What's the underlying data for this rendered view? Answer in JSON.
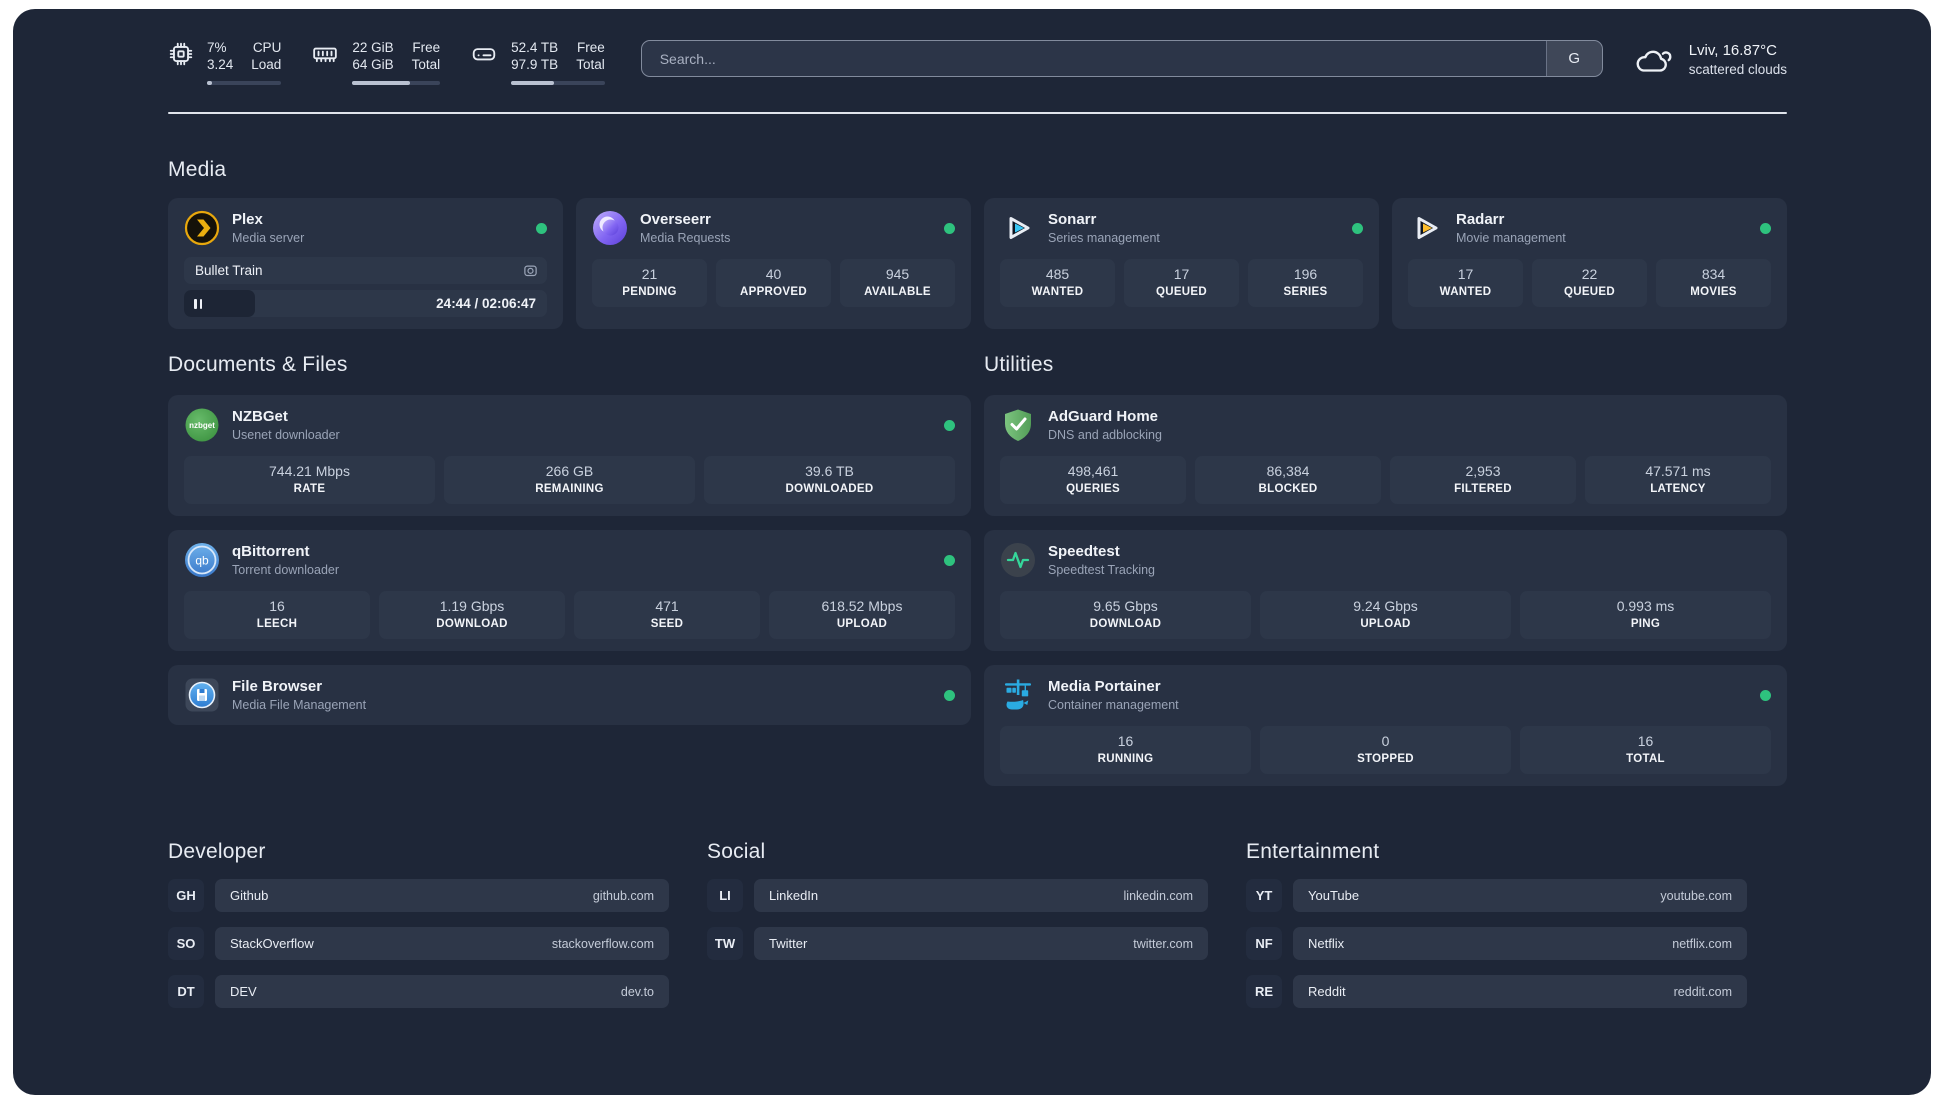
{
  "topbar": {
    "cpu": {
      "usage": "7%",
      "load": "3.24",
      "label_top": "CPU",
      "label_bottom": "Load",
      "progress": 7
    },
    "memory": {
      "free": "22 GiB",
      "total": "64 GiB",
      "label_top": "Free",
      "label_bottom": "Total",
      "progress": 66
    },
    "disk": {
      "free": "52.4 TB",
      "total": "97.9 TB",
      "label_top": "Free",
      "label_bottom": "Total",
      "progress": 46
    },
    "search": {
      "placeholder": "Search...",
      "engine_button": "G"
    },
    "weather": {
      "location": "Lviv, 16.87°C",
      "condition": "scattered clouds"
    }
  },
  "media": {
    "title": "Media",
    "plex": {
      "name": "Plex",
      "desc": "Media server",
      "now_playing": "Bullet Train",
      "time": "24:44 / 02:06:47",
      "progress": 19.5
    },
    "overseerr": {
      "name": "Overseerr",
      "desc": "Media Requests",
      "stats": [
        {
          "value": "21",
          "label": "PENDING"
        },
        {
          "value": "40",
          "label": "APPROVED"
        },
        {
          "value": "945",
          "label": "AVAILABLE"
        }
      ]
    },
    "sonarr": {
      "name": "Sonarr",
      "desc": "Series management",
      "stats": [
        {
          "value": "485",
          "label": "WANTED"
        },
        {
          "value": "17",
          "label": "QUEUED"
        },
        {
          "value": "196",
          "label": "SERIES"
        }
      ]
    },
    "radarr": {
      "name": "Radarr",
      "desc": "Movie management",
      "stats": [
        {
          "value": "17",
          "label": "WANTED"
        },
        {
          "value": "22",
          "label": "QUEUED"
        },
        {
          "value": "834",
          "label": "MOVIES"
        }
      ]
    }
  },
  "documents": {
    "title": "Documents & Files",
    "nzbget": {
      "name": "NZBGet",
      "desc": "Usenet downloader",
      "stats": [
        {
          "value": "744.21 Mbps",
          "label": "RATE"
        },
        {
          "value": "266 GB",
          "label": "REMAINING"
        },
        {
          "value": "39.6 TB",
          "label": "DOWNLOADED"
        }
      ]
    },
    "qbittorrent": {
      "name": "qBittorrent",
      "desc": "Torrent downloader",
      "stats": [
        {
          "value": "16",
          "label": "LEECH"
        },
        {
          "value": "1.19 Gbps",
          "label": "DOWNLOAD"
        },
        {
          "value": "471",
          "label": "SEED"
        },
        {
          "value": "618.52 Mbps",
          "label": "UPLOAD"
        }
      ]
    },
    "filebrowser": {
      "name": "File Browser",
      "desc": "Media File Management"
    }
  },
  "utilities": {
    "title": "Utilities",
    "adguard": {
      "name": "AdGuard Home",
      "desc": "DNS and adblocking",
      "stats": [
        {
          "value": "498,461",
          "label": "QUERIES"
        },
        {
          "value": "86,384",
          "label": "BLOCKED"
        },
        {
          "value": "2,953",
          "label": "FILTERED"
        },
        {
          "value": "47.571 ms",
          "label": "LATENCY"
        }
      ]
    },
    "speedtest": {
      "name": "Speedtest",
      "desc": "Speedtest Tracking",
      "stats": [
        {
          "value": "9.65 Gbps",
          "label": "DOWNLOAD"
        },
        {
          "value": "9.24 Gbps",
          "label": "UPLOAD"
        },
        {
          "value": "0.993 ms",
          "label": "PING"
        }
      ]
    },
    "portainer": {
      "name": "Media Portainer",
      "desc": "Container management",
      "stats": [
        {
          "value": "16",
          "label": "RUNNING"
        },
        {
          "value": "0",
          "label": "STOPPED"
        },
        {
          "value": "16",
          "label": "TOTAL"
        }
      ]
    }
  },
  "links": {
    "developer": {
      "title": "Developer",
      "items": [
        {
          "abbr": "GH",
          "name": "Github",
          "domain": "github.com"
        },
        {
          "abbr": "SO",
          "name": "StackOverflow",
          "domain": "stackoverflow.com"
        },
        {
          "abbr": "DT",
          "name": "DEV",
          "domain": "dev.to"
        }
      ]
    },
    "social": {
      "title": "Social",
      "items": [
        {
          "abbr": "LI",
          "name": "LinkedIn",
          "domain": "linkedin.com"
        },
        {
          "abbr": "TW",
          "name": "Twitter",
          "domain": "twitter.com"
        }
      ]
    },
    "entertainment": {
      "title": "Entertainment",
      "items": [
        {
          "abbr": "YT",
          "name": "YouTube",
          "domain": "youtube.com"
        },
        {
          "abbr": "NF",
          "name": "Netflix",
          "domain": "netflix.com"
        },
        {
          "abbr": "RE",
          "name": "Reddit",
          "domain": "reddit.com"
        }
      ]
    }
  },
  "colors": {
    "status_online": "#2ec27e",
    "plex_gold": "#ebaf0f",
    "sonarr_blue": "#38c6f4",
    "radarr_gold": "#fdbd2c",
    "adguard_green": "#68b56e",
    "nzbget_green": "#43a047",
    "qbittorrent_blue": "#4d95db",
    "speedtest_green": "#35d69a",
    "filebrowser_blue": "#4aa0e8",
    "portainer_blue": "#2aabe2"
  }
}
